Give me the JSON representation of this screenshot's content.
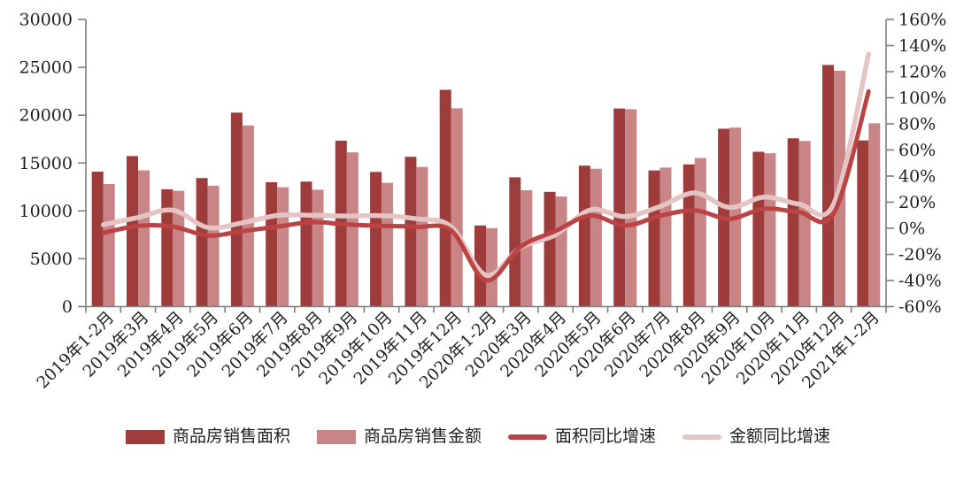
{
  "chart_data": {
    "type": "bar+line-combo",
    "legend_position": "bottom",
    "grid": false,
    "categories": [
      "2019年1-2月",
      "2019年3月",
      "2019年4月",
      "2019年5月",
      "2019年6月",
      "2019年7月",
      "2019年8月",
      "2019年9月",
      "2019年10月",
      "2019年11月",
      "2019年12月",
      "2020年1-2月",
      "2020年3月",
      "2020年4月",
      "2020年5月",
      "2020年6月",
      "2020年7月",
      "2020年8月",
      "2020年9月",
      "2020年10月",
      "2020年11月",
      "2020年12月",
      "2021年1-2月"
    ],
    "left_axis": {
      "min": 0,
      "max": 30000,
      "step": 5000,
      "ticks": [
        "0",
        "5000",
        "10000",
        "15000",
        "20000",
        "25000",
        "30000"
      ]
    },
    "right_axis": {
      "min": -60,
      "max": 160,
      "step": 20,
      "ticks": [
        "-60%",
        "-40%",
        "-20%",
        "0%",
        "20%",
        "40%",
        "60%",
        "80%",
        "100%",
        "120%",
        "140%",
        "160%"
      ]
    },
    "series": [
      {
        "name": "商品房销售面积",
        "type": "bar",
        "axis": "left",
        "color": "#9e3b3b",
        "values": [
          14102,
          15727,
          12256,
          13433,
          20268,
          12997,
          13066,
          17330,
          14072,
          15654,
          22653,
          8475,
          13503,
          11995,
          14730,
          20701,
          14227,
          14855,
          18587,
          16175,
          17586,
          25252,
          17363
        ]
      },
      {
        "name": "商品房销售金额",
        "type": "bar",
        "axis": "left",
        "color": "#c98585",
        "values": [
          12803,
          14236,
          12102,
          12632,
          18925,
          12464,
          12211,
          16118,
          12926,
          14589,
          20719,
          8203,
          12162,
          11498,
          14406,
          20626,
          14527,
          15521,
          18704,
          16018,
          17304,
          24644,
          19151
        ]
      },
      {
        "name": "面积同比增速",
        "type": "line",
        "axis": "right",
        "color": "#bc4343",
        "values": [
          -3.6,
          1.8,
          1.3,
          -5.5,
          -2.2,
          1.2,
          4.7,
          2.9,
          1.9,
          1.1,
          -1.7,
          -39.9,
          -14.1,
          -2.1,
          9.7,
          2.1,
          9.5,
          13.7,
          7.3,
          15.0,
          12.3,
          11.5,
          104.9
        ]
      },
      {
        "name": "金额同比增速",
        "type": "line",
        "axis": "right",
        "color": "#e5c4c4",
        "values": [
          2.8,
          8.3,
          13.9,
          0.6,
          4.2,
          9.8,
          10.0,
          9.4,
          9.7,
          7.3,
          1.2,
          -35.9,
          -14.6,
          -5.0,
          14.0,
          9.0,
          16.6,
          27.1,
          16.0,
          23.9,
          18.6,
          18.9,
          133.5
        ]
      }
    ],
    "axis_color": "#7f7f7f",
    "label_color": "#1f1f1f"
  }
}
